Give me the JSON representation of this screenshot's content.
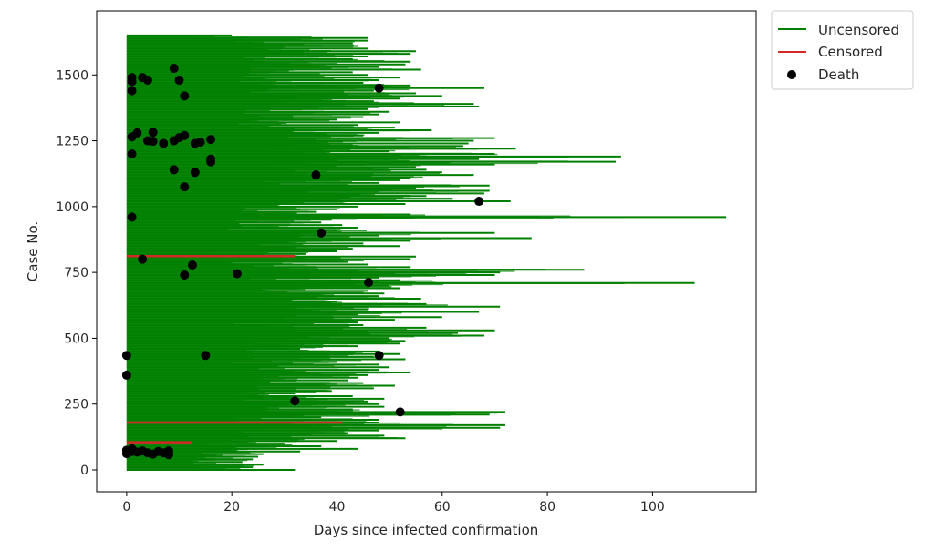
{
  "chart_data": {
    "type": "line",
    "title": "",
    "xlabel": "Days since infected confirmation",
    "ylabel": "Case No.",
    "xlim": [
      -5.7,
      119.7
    ],
    "ylim": [
      -83,
      1743
    ],
    "xticks": [
      0,
      20,
      40,
      60,
      80,
      100
    ],
    "yticks": [
      0,
      250,
      500,
      750,
      1000,
      1250,
      1500
    ],
    "grid": false,
    "legend_position": "top-right, outside plot",
    "colors": {
      "uncensored": "#008000",
      "censored": "#d62728",
      "death": "#000000"
    },
    "legend": [
      {
        "label": "Uncensored",
        "marker": "line",
        "color": "#008000"
      },
      {
        "label": "Censored",
        "marker": "line",
        "color": "#d62728"
      },
      {
        "label": "Death",
        "marker": "dot",
        "color": "#000000"
      }
    ],
    "series": [
      {
        "name": "Uncensored",
        "kind": "horizontal-lines",
        "segments": [
          [
            0,
            32
          ],
          [
            10,
            24
          ],
          [
            20,
            26
          ],
          [
            30,
            22
          ],
          [
            40,
            24
          ],
          [
            50,
            25
          ],
          [
            60,
            26
          ],
          [
            70,
            33
          ],
          [
            80,
            44
          ],
          [
            90,
            37
          ],
          [
            100,
            30
          ],
          [
            110,
            40
          ],
          [
            120,
            53
          ],
          [
            130,
            49
          ],
          [
            140,
            42
          ],
          [
            150,
            48
          ],
          [
            160,
            71
          ],
          [
            170,
            72
          ],
          [
            180,
            48
          ],
          [
            190,
            48
          ],
          [
            200,
            37
          ],
          [
            210,
            69
          ],
          [
            220,
            72
          ],
          [
            230,
            43
          ],
          [
            240,
            49
          ],
          [
            250,
            48
          ],
          [
            260,
            46
          ],
          [
            270,
            49
          ],
          [
            280,
            43
          ],
          [
            290,
            32
          ],
          [
            300,
            39
          ],
          [
            310,
            47
          ],
          [
            320,
            51
          ],
          [
            330,
            45
          ],
          [
            340,
            42
          ],
          [
            350,
            44
          ],
          [
            360,
            46
          ],
          [
            370,
            54
          ],
          [
            380,
            48
          ],
          [
            390,
            50
          ],
          [
            400,
            48
          ],
          [
            410,
            40
          ],
          [
            420,
            53
          ],
          [
            430,
            47
          ],
          [
            440,
            52
          ],
          [
            450,
            48
          ],
          [
            460,
            33
          ],
          [
            470,
            44
          ],
          [
            480,
            52
          ],
          [
            490,
            53
          ],
          [
            500,
            50
          ],
          [
            510,
            68
          ],
          [
            520,
            63
          ],
          [
            530,
            70
          ],
          [
            540,
            57
          ],
          [
            550,
            45
          ],
          [
            560,
            44
          ],
          [
            570,
            51
          ],
          [
            580,
            60
          ],
          [
            590,
            44
          ],
          [
            600,
            67
          ],
          [
            610,
            46
          ],
          [
            620,
            71
          ],
          [
            630,
            57
          ],
          [
            640,
            40
          ],
          [
            650,
            56
          ],
          [
            660,
            48
          ],
          [
            670,
            49
          ],
          [
            680,
            46
          ],
          [
            690,
            52
          ],
          [
            700,
            50
          ],
          [
            710,
            108
          ],
          [
            720,
            52
          ],
          [
            730,
            48
          ],
          [
            740,
            70
          ],
          [
            750,
            71
          ],
          [
            760,
            87
          ],
          [
            770,
            54
          ],
          [
            780,
            46
          ],
          [
            790,
            42
          ],
          [
            800,
            54
          ],
          [
            810,
            55
          ],
          [
            820,
            34
          ],
          [
            830,
            40
          ],
          [
            840,
            43
          ],
          [
            850,
            52
          ],
          [
            860,
            45
          ],
          [
            870,
            54
          ],
          [
            880,
            77
          ],
          [
            890,
            48
          ],
          [
            900,
            70
          ],
          [
            910,
            40
          ],
          [
            920,
            44
          ],
          [
            930,
            41
          ],
          [
            940,
            37
          ],
          [
            950,
            39
          ],
          [
            960,
            114
          ],
          [
            970,
            54
          ],
          [
            980,
            36
          ],
          [
            990,
            40
          ],
          [
            1000,
            44
          ],
          [
            1010,
            53
          ],
          [
            1020,
            73
          ],
          [
            1030,
            62
          ],
          [
            1040,
            57
          ],
          [
            1050,
            68
          ],
          [
            1060,
            69
          ],
          [
            1070,
            55
          ],
          [
            1080,
            69
          ],
          [
            1090,
            48
          ],
          [
            1100,
            52
          ],
          [
            1110,
            54
          ],
          [
            1120,
            66
          ],
          [
            1130,
            60
          ],
          [
            1140,
            57
          ],
          [
            1150,
            55
          ],
          [
            1160,
            70
          ],
          [
            1170,
            93
          ],
          [
            1180,
            67
          ],
          [
            1190,
            94
          ],
          [
            1200,
            70
          ],
          [
            1210,
            50
          ],
          [
            1220,
            74
          ],
          [
            1230,
            64
          ],
          [
            1240,
            65
          ],
          [
            1250,
            66
          ],
          [
            1260,
            70
          ],
          [
            1270,
            45
          ],
          [
            1280,
            48
          ],
          [
            1290,
            58
          ],
          [
            1300,
            51
          ],
          [
            1310,
            44
          ],
          [
            1320,
            52
          ],
          [
            1330,
            40
          ],
          [
            1340,
            45
          ],
          [
            1350,
            48
          ],
          [
            1360,
            50
          ],
          [
            1370,
            46
          ],
          [
            1380,
            67
          ],
          [
            1390,
            66
          ],
          [
            1400,
            47
          ],
          [
            1410,
            52
          ],
          [
            1420,
            60
          ],
          [
            1430,
            55
          ],
          [
            1440,
            47
          ],
          [
            1450,
            68
          ],
          [
            1460,
            54
          ],
          [
            1470,
            45
          ],
          [
            1480,
            48
          ],
          [
            1490,
            52
          ],
          [
            1500,
            46
          ],
          [
            1510,
            43
          ],
          [
            1520,
            56
          ],
          [
            1530,
            48
          ],
          [
            1540,
            53
          ],
          [
            1550,
            54
          ],
          [
            1560,
            43
          ],
          [
            1570,
            46
          ],
          [
            1580,
            54
          ],
          [
            1590,
            55
          ],
          [
            1600,
            46
          ],
          [
            1610,
            44
          ],
          [
            1620,
            43
          ],
          [
            1630,
            46
          ],
          [
            1640,
            46
          ],
          [
            1650,
            20
          ]
        ]
      },
      {
        "name": "Censored",
        "kind": "horizontal-lines",
        "segments": [
          [
            105,
            12.5
          ],
          [
            180,
            41
          ],
          [
            812,
            32
          ]
        ]
      },
      {
        "name": "Death",
        "kind": "scatter",
        "points": [
          [
            0,
            75
          ],
          [
            1,
            70
          ],
          [
            2,
            68
          ],
          [
            3,
            72
          ],
          [
            4,
            65
          ],
          [
            5,
            60
          ],
          [
            6,
            70
          ],
          [
            7,
            65
          ],
          [
            8,
            72
          ],
          [
            0,
            62
          ],
          [
            1,
            80
          ],
          [
            8,
            58
          ],
          [
            0,
            360
          ],
          [
            0,
            435
          ],
          [
            15,
            435
          ],
          [
            48,
            435
          ],
          [
            32,
            262
          ],
          [
            52,
            220
          ],
          [
            3,
            800
          ],
          [
            12.5,
            778
          ],
          [
            11,
            740
          ],
          [
            21,
            745
          ],
          [
            46,
            712
          ],
          [
            37,
            900
          ],
          [
            1,
            960
          ],
          [
            67,
            1020
          ],
          [
            11,
            1075
          ],
          [
            9,
            1140
          ],
          [
            13,
            1130
          ],
          [
            16,
            1170
          ],
          [
            16,
            1180
          ],
          [
            36,
            1120
          ],
          [
            1,
            1200
          ],
          [
            1,
            1265
          ],
          [
            2,
            1280
          ],
          [
            4,
            1250
          ],
          [
            5,
            1248
          ],
          [
            5,
            1282
          ],
          [
            7,
            1240
          ],
          [
            9,
            1250
          ],
          [
            10,
            1262
          ],
          [
            11,
            1270
          ],
          [
            13,
            1240
          ],
          [
            14,
            1245
          ],
          [
            16,
            1255
          ],
          [
            1,
            1440
          ],
          [
            1,
            1475
          ],
          [
            1,
            1490
          ],
          [
            3,
            1490
          ],
          [
            4,
            1480
          ],
          [
            9,
            1525
          ],
          [
            10,
            1480
          ],
          [
            11,
            1420
          ],
          [
            48,
            1450
          ]
        ]
      }
    ]
  }
}
